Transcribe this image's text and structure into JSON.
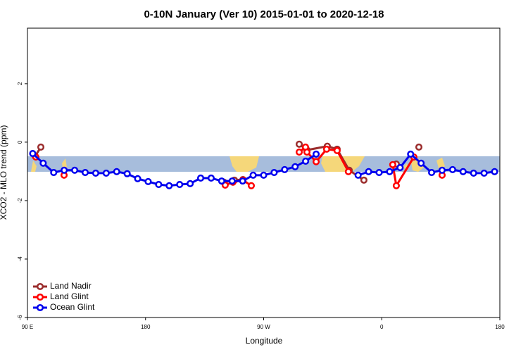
{
  "chart_data": {
    "type": "line",
    "title": "0-10N January (Ver 10)   2015-01-01 to 2020-12-18",
    "x_label": "Longitude",
    "y_label": "XCO2 - MLO trend (ppm)",
    "xlim": [
      90,
      450
    ],
    "ylim": [
      -6,
      3.9
    ],
    "xticks": [
      {
        "value": 90,
        "label": "90 E"
      },
      180,
      {
        "value": 270,
        "label": "90 W"
      },
      {
        "value": 360,
        "label": "0"
      },
      {
        "value": 450,
        "label": "180"
      }
    ],
    "yticks": [
      -6,
      -4,
      -2,
      0,
      2
    ],
    "legend": "bottom-left",
    "series": [
      {
        "name": "Land Nadir",
        "color": "#9b2d2d",
        "x": [
          95.9,
          100.2,
          null,
          239.7,
          247.7,
          254.2,
          null,
          297.1,
          303,
          318.5,
          326,
          335.2,
          346.4,
          null,
          371.1,
          null,
          388.3
        ],
        "values": [
          -0.48,
          -0.17,
          null,
          -1.37,
          -1.3,
          -1.28,
          null,
          -0.07,
          -0.27,
          -0.14,
          -0.24,
          -0.96,
          -1.3,
          null,
          -0.75,
          null,
          -0.17
        ]
      },
      {
        "name": "Land Glint",
        "color": "#ff0000",
        "x": [
          96.4,
          null,
          117.9,
          null,
          240.7,
          246.6,
          254.2,
          260.6,
          null,
          297.1,
          301.9,
          303,
          310,
          318,
          326,
          334.6,
          null,
          368.4,
          371.1,
          384.5,
          null,
          406
        ],
        "values": [
          -0.51,
          null,
          -1.13,
          null,
          -1.47,
          -1.37,
          -1.3,
          -1.49,
          null,
          -0.34,
          -0.17,
          -0.34,
          -0.67,
          -0.24,
          -0.29,
          -1.01,
          null,
          -0.77,
          -1.49,
          -0.51,
          null,
          -1.13
        ]
      },
      {
        "name": "Ocean Glint",
        "color": "#0000ee",
        "x": [
          94,
          102,
          110,
          118,
          126,
          134,
          142,
          150,
          158,
          166,
          174,
          182,
          190,
          198,
          206,
          214,
          222,
          230,
          238,
          246,
          254,
          262,
          270,
          278,
          286,
          294,
          302,
          310,
          318,
          326,
          334,
          342,
          350,
          358,
          366,
          374,
          382,
          390,
          398,
          406,
          414,
          422,
          430,
          438,
          446
        ],
        "values": [
          -0.39,
          -0.72,
          -1.04,
          -0.96,
          -0.96,
          -1.04,
          -1.06,
          -1.06,
          -1.01,
          -1.08,
          -1.25,
          -1.35,
          -1.45,
          -1.49,
          -1.45,
          -1.42,
          -1.23,
          -1.23,
          -1.33,
          -1.33,
          -1.33,
          -1.13,
          -1.13,
          -1.04,
          -0.94,
          -0.84,
          -0.65,
          -0.41,
          null,
          null,
          null,
          -1.13,
          -1.01,
          -1.04,
          -1.01,
          -0.87,
          -0.41,
          -0.72,
          -1.04,
          -0.96,
          -0.94,
          -1.01,
          -1.06,
          -1.06,
          -1.01
        ]
      }
    ]
  }
}
